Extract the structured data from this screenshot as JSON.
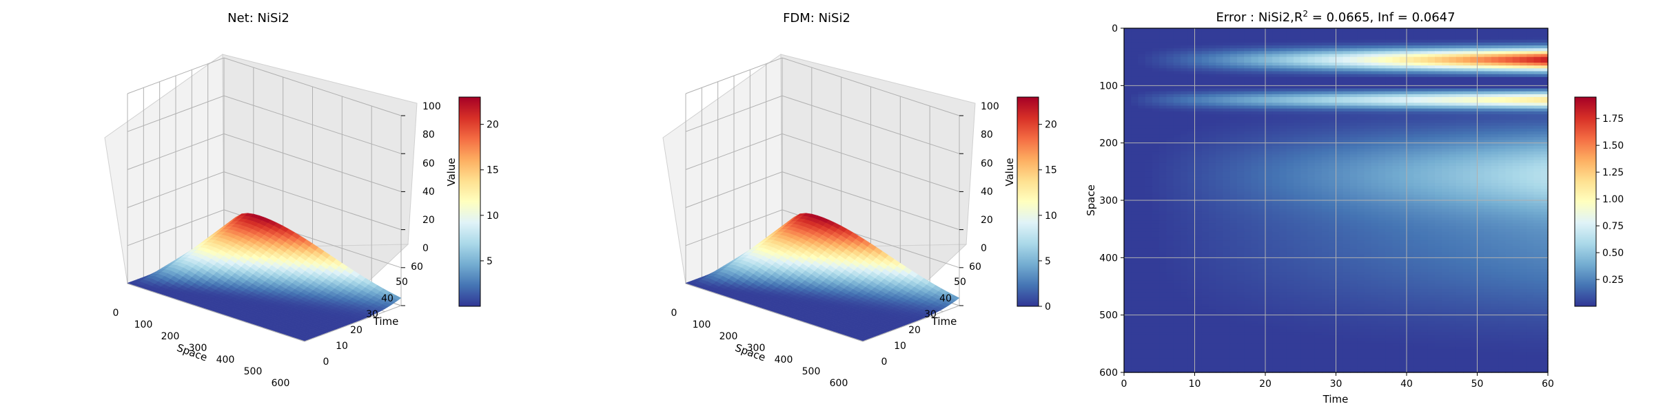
{
  "chart_data": [
    {
      "type": "surface3d",
      "title": "Net: NiSi2",
      "xlabel": "Space",
      "ylabel": "Time",
      "zlabel": "Value",
      "xlim": [
        0,
        600
      ],
      "ylim": [
        0,
        60
      ],
      "zlim": [
        0,
        100
      ],
      "x_ticks": [
        "0",
        "100",
        "200",
        "300",
        "400",
        "500",
        "600"
      ],
      "y_ticks": [
        "0",
        "10",
        "20",
        "30",
        "40",
        "50",
        "60"
      ],
      "z_ticks": [
        "0",
        "20",
        "40",
        "60",
        "80",
        "100"
      ],
      "peak_value": 23,
      "peak_space": 100,
      "peak_time": 60,
      "colormap": "RdYlBu_r",
      "colorbar": {
        "min": 0,
        "max": 23,
        "ticks": [
          "5",
          "10",
          "15",
          "20"
        ]
      },
      "grid": true
    },
    {
      "type": "surface3d",
      "title": "FDM: NiSi2",
      "xlabel": "Space",
      "ylabel": "Time",
      "zlabel": "Value",
      "xlim": [
        0,
        600
      ],
      "ylim": [
        0,
        60
      ],
      "zlim": [
        0,
        100
      ],
      "x_ticks": [
        "0",
        "100",
        "200",
        "300",
        "400",
        "500",
        "600"
      ],
      "y_ticks": [
        "0",
        "10",
        "20",
        "30",
        "40",
        "50",
        "60"
      ],
      "z_ticks": [
        "0",
        "20",
        "40",
        "60",
        "80",
        "100"
      ],
      "peak_value": 23,
      "peak_space": 100,
      "peak_time": 60,
      "colormap": "RdYlBu_r",
      "colorbar": {
        "min": 0,
        "max": 23,
        "ticks": [
          "0",
          "5",
          "10",
          "15",
          "20"
        ]
      },
      "grid": true
    },
    {
      "type": "heatmap",
      "title_prefix": "Error : NiSi2,",
      "title_r2_base": "R",
      "title_r2_exp": "2",
      "title_suffix": " = 0.0665, Inf = 0.0647",
      "xlabel": "Time",
      "ylabel": "Space",
      "xlim": [
        0,
        60
      ],
      "ylim": [
        600,
        0
      ],
      "x_ticks": [
        "0",
        "10",
        "20",
        "30",
        "40",
        "50",
        "60"
      ],
      "y_ticks": [
        "0",
        "100",
        "200",
        "300",
        "400",
        "500",
        "600"
      ],
      "colormap": "RdYlBu_r",
      "colorbar": {
        "min": 0,
        "max": 1.95,
        "ticks": [
          "0.25",
          "0.50",
          "0.75",
          "1.00",
          "1.25",
          "1.50",
          "1.75"
        ]
      },
      "grid": true
    }
  ],
  "colors": {
    "colormap_stops": [
      "#313695",
      "#4575b4",
      "#74add1",
      "#abd9e9",
      "#e0f3f8",
      "#ffffbf",
      "#fee090",
      "#fdae61",
      "#f46d43",
      "#d73027",
      "#a50026"
    ],
    "pane": "#f2f2f2",
    "grid": "#b0b0b0"
  }
}
